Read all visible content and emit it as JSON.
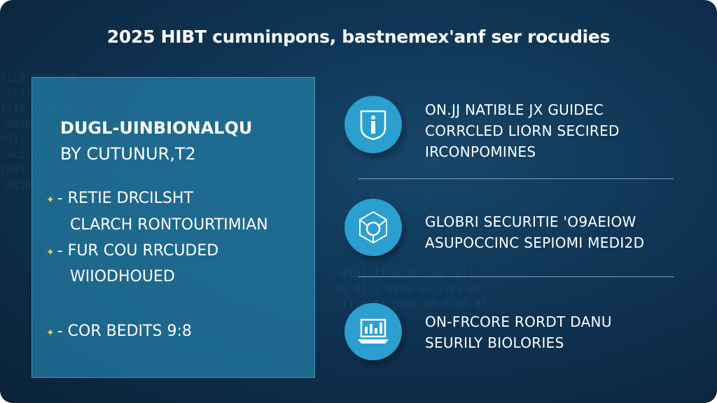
{
  "title": "2025 HIBT cumninpons, bastnemex'anf ser rocudies",
  "panel": {
    "heading_line1": "DUGL-UINBIONALQU",
    "heading_line2": "BY CUTUNUR,T2",
    "bullets": [
      {
        "line1": "- RETIE DRCILSHT",
        "line2": "CLARCH RONTOURTIMIAN"
      },
      {
        "line1": "- FUR COU RRCUDED",
        "line2": "WIIODHOUED"
      },
      {
        "line1": "- COR BEDITS 9:8",
        "line2": ""
      }
    ]
  },
  "features": [
    {
      "icon": "shield-info-icon",
      "lines": [
        "ON.JJ NATIBLE JX GUIDEC",
        "CORRCLED LIORN SECIRED",
        "IRCONPOMINES"
      ]
    },
    {
      "icon": "network-globe-icon",
      "lines": [
        "GLOBRI SECURITIE 'O9AEIOW",
        "ASUPOCCINC SEPIOMI MEDI2D"
      ]
    },
    {
      "icon": "laptop-chart-icon",
      "lines": [
        "ON-FRCORE RORDT DANU",
        "SEURILY BIOLORIES"
      ]
    }
  ],
  "colors": {
    "background": "#0f3454",
    "panel": "#2378a0",
    "icon_circle": "#2a9fd0",
    "bullet_star": "#f2d64b"
  }
}
